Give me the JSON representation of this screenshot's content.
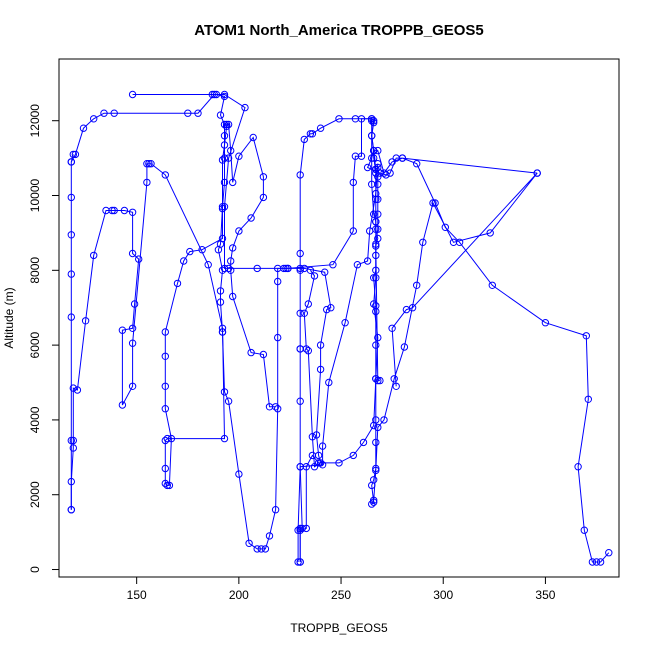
{
  "chart_data": {
    "type": "line",
    "title": "ATOM1 North_America TROPPB_GEOS5",
    "xlabel": "TROPPB_GEOS5",
    "ylabel": "Altitude (m)",
    "xlim": [
      112,
      386
    ],
    "ylim": [
      -200,
      13650
    ],
    "xticks": [
      150,
      200,
      250,
      300,
      350
    ],
    "yticks": [
      0,
      2000,
      4000,
      6000,
      8000,
      10000,
      12000
    ],
    "grid": false,
    "legend": "none",
    "color": "#0000ff",
    "marker": "open-circle",
    "series": [
      {
        "points": [
          [
            230,
            200
          ],
          [
            230,
            1100
          ],
          [
            231,
            1100
          ],
          [
            230,
            2750
          ],
          [
            230,
            4500
          ],
          [
            230,
            5900
          ],
          [
            230,
            5900
          ],
          [
            230,
            6850
          ],
          [
            230,
            8000
          ],
          [
            230,
            8450
          ],
          [
            230,
            10550
          ],
          [
            232,
            11500
          ],
          [
            235,
            11650
          ],
          [
            236,
            11650
          ],
          [
            240,
            11800
          ],
          [
            249,
            12050
          ],
          [
            257,
            12050
          ],
          [
            265,
            12050
          ],
          [
            266,
            12000
          ],
          [
            265,
            11600
          ],
          [
            266,
            11200
          ],
          [
            266,
            11000
          ],
          [
            267,
            10700
          ],
          [
            267,
            10600
          ],
          [
            268,
            10500
          ],
          [
            268,
            10300
          ],
          [
            268,
            9900
          ],
          [
            268,
            9500
          ],
          [
            268,
            9100
          ],
          [
            267,
            8700
          ],
          [
            267,
            8400
          ],
          [
            267,
            8000
          ],
          [
            266,
            7800
          ],
          [
            267,
            7050
          ],
          [
            267,
            6900
          ],
          [
            267,
            6000
          ],
          [
            267,
            5100
          ],
          [
            267,
            4000
          ],
          [
            267,
            3400
          ],
          [
            267,
            2700
          ],
          [
            266,
            2400
          ],
          [
            265,
            2250
          ],
          [
            266,
            1800
          ],
          [
            265,
            1750
          ],
          [
            266,
            1850
          ],
          [
            267,
            2650
          ],
          [
            268,
            3800
          ],
          [
            271,
            4000
          ],
          [
            276,
            5100
          ],
          [
            281,
            5950
          ],
          [
            287,
            7600
          ],
          [
            290,
            8750
          ],
          [
            295,
            9800
          ],
          [
            305,
            8750
          ],
          [
            323,
            9000
          ],
          [
            346,
            10600
          ],
          [
            285,
            7000
          ],
          [
            282,
            6950
          ],
          [
            275,
            6450
          ],
          [
            277,
            4900
          ]
        ]
      },
      {
        "points": [
          [
            118,
            1600
          ],
          [
            118,
            2350
          ],
          [
            119,
            3250
          ],
          [
            119,
            3450
          ],
          [
            119,
            4850
          ],
          [
            121,
            4800
          ],
          [
            125,
            6650
          ],
          [
            129,
            8400
          ],
          [
            135,
            9600
          ],
          [
            138,
            9600
          ],
          [
            139,
            9600
          ],
          [
            144,
            9600
          ],
          [
            148,
            9550
          ],
          [
            148,
            8450
          ],
          [
            151,
            8300
          ],
          [
            149,
            7100
          ],
          [
            148,
            6450
          ],
          [
            143,
            6400
          ],
          [
            143,
            4400
          ],
          [
            148,
            4900
          ],
          [
            148,
            6050
          ],
          [
            155,
            10350
          ],
          [
            155,
            10850
          ],
          [
            156,
            10850
          ],
          [
            157,
            10850
          ],
          [
            164,
            10550
          ],
          [
            185,
            8150
          ],
          [
            192,
            6450
          ],
          [
            193,
            3500
          ],
          [
            165,
            3500
          ],
          [
            164,
            3450
          ],
          [
            164,
            2700
          ],
          [
            164,
            2300
          ],
          [
            165,
            2250
          ],
          [
            166,
            2250
          ],
          [
            167,
            3500
          ],
          [
            164,
            4300
          ],
          [
            164,
            4900
          ],
          [
            164,
            5700
          ],
          [
            164,
            6350
          ],
          [
            170,
            7650
          ],
          [
            173,
            8250
          ],
          [
            176,
            8500
          ],
          [
            182,
            8550
          ],
          [
            192,
            8850
          ],
          [
            192,
            9650
          ],
          [
            192,
            10950
          ],
          [
            193,
            11350
          ],
          [
            194,
            11850
          ],
          [
            194,
            11900
          ],
          [
            195,
            11900
          ],
          [
            196,
            11200
          ],
          [
            197,
            10350
          ],
          [
            200,
            11050
          ],
          [
            207,
            11550
          ],
          [
            212,
            10500
          ],
          [
            212,
            9950
          ],
          [
            206,
            9400
          ],
          [
            200,
            9050
          ],
          [
            197,
            8600
          ],
          [
            196,
            8250
          ],
          [
            196,
            8000
          ],
          [
            197,
            7300
          ],
          [
            206,
            5800
          ],
          [
            212,
            5750
          ],
          [
            215,
            4350
          ],
          [
            218,
            4350
          ]
        ]
      },
      {
        "points": [
          [
            118,
            10900
          ],
          [
            120,
            11100
          ],
          [
            124,
            11800
          ],
          [
            129,
            12050
          ],
          [
            134,
            12200
          ],
          [
            139,
            12200
          ],
          [
            175,
            12200
          ],
          [
            180,
            12200
          ],
          [
            188,
            12700
          ],
          [
            189,
            12700
          ],
          [
            193,
            12650
          ],
          [
            191,
            12150
          ],
          [
            193,
            11900
          ],
          [
            193,
            11600
          ],
          [
            193,
            11000
          ],
          [
            193,
            10350
          ],
          [
            192,
            9700
          ],
          [
            191,
            8700
          ],
          [
            190,
            8550
          ],
          [
            192,
            8000
          ],
          [
            191,
            7450
          ],
          [
            191,
            7150
          ],
          [
            192,
            6350
          ],
          [
            192,
            6350
          ],
          [
            193,
            4750
          ],
          [
            195,
            4500
          ],
          [
            200,
            2550
          ],
          [
            205,
            700
          ],
          [
            209,
            550
          ],
          [
            211,
            550
          ],
          [
            213,
            550
          ],
          [
            215,
            900
          ],
          [
            218,
            1600
          ],
          [
            219,
            4300
          ],
          [
            219,
            6200
          ],
          [
            219,
            7700
          ],
          [
            219,
            8050
          ],
          [
            222,
            8050
          ],
          [
            223,
            8050
          ],
          [
            224,
            8050
          ],
          [
            230,
            8050
          ],
          [
            232,
            8050
          ],
          [
            242,
            7950
          ],
          [
            245,
            7000
          ],
          [
            243,
            6950
          ],
          [
            240,
            6000
          ],
          [
            240,
            5350
          ],
          [
            238,
            3600
          ],
          [
            239,
            3050
          ],
          [
            240,
            2850
          ],
          [
            237,
            2750
          ],
          [
            236,
            3550
          ],
          [
            234,
            5850
          ],
          [
            233,
            5900
          ],
          [
            232,
            6850
          ],
          [
            234,
            7100
          ],
          [
            237,
            7850
          ],
          [
            235,
            8000
          ]
        ]
      },
      {
        "points": [
          [
            148,
            12700
          ],
          [
            187,
            12700
          ],
          [
            193,
            12700
          ],
          [
            203,
            12350
          ],
          [
            195,
            11000
          ],
          [
            193,
            9700
          ],
          [
            193,
            8050
          ],
          [
            195,
            8050
          ],
          [
            209,
            8050
          ],
          [
            224,
            8050
          ],
          [
            246,
            8150
          ],
          [
            256,
            9050
          ],
          [
            256,
            10350
          ],
          [
            257,
            11050
          ],
          [
            260,
            11050
          ],
          [
            260,
            12050
          ],
          [
            265,
            12050
          ],
          [
            265,
            10300
          ],
          [
            266,
            9500
          ],
          [
            267,
            9300
          ],
          [
            267,
            9100
          ],
          [
            268,
            8850
          ],
          [
            267,
            8650
          ],
          [
            268,
            5050
          ],
          [
            269,
            5050
          ]
        ]
      },
      {
        "points": [
          [
            118,
            1600
          ],
          [
            118,
            3450
          ],
          [
            118,
            6750
          ],
          [
            118,
            7900
          ],
          [
            118,
            8950
          ],
          [
            118,
            9950
          ],
          [
            118,
            10900
          ],
          [
            119,
            11100
          ]
        ]
      },
      {
        "points": [
          [
            381,
            450
          ],
          [
            377,
            200
          ],
          [
            375,
            200
          ],
          [
            373,
            200
          ],
          [
            369,
            1050
          ],
          [
            366,
            2750
          ],
          [
            371,
            4550
          ],
          [
            370,
            6250
          ],
          [
            350,
            6600
          ],
          [
            324,
            7600
          ],
          [
            308,
            8750
          ],
          [
            301,
            9150
          ],
          [
            296,
            9800
          ],
          [
            287,
            10850
          ],
          [
            280,
            11000
          ],
          [
            275,
            10900
          ],
          [
            271,
            10600
          ],
          [
            268,
            11200
          ],
          [
            266,
            11200
          ],
          [
            265,
            11000
          ],
          [
            263,
            10750
          ],
          [
            269,
            10600
          ],
          [
            272,
            10550
          ],
          [
            274,
            10600
          ],
          [
            277,
            11000
          ],
          [
            280,
            11000
          ],
          [
            346,
            10600
          ]
        ]
      },
      {
        "points": [
          [
            230,
            200
          ],
          [
            230,
            1050
          ],
          [
            233,
            1100
          ],
          [
            233,
            2750
          ],
          [
            236,
            3050
          ],
          [
            239,
            2850
          ],
          [
            249,
            2850
          ],
          [
            256,
            3050
          ],
          [
            261,
            3400
          ],
          [
            266,
            3850
          ],
          [
            267,
            5100
          ],
          [
            268,
            6200
          ],
          [
            266,
            7100
          ],
          [
            267,
            7800
          ],
          [
            267,
            9300
          ],
          [
            267,
            9900
          ],
          [
            267,
            10700
          ],
          [
            268,
            10750
          ],
          [
            267,
            10700
          ],
          [
            266,
            11200
          ],
          [
            265,
            11600
          ],
          [
            266,
            11950
          ],
          [
            265,
            12000
          ]
        ]
      },
      {
        "points": [
          [
            229,
            200
          ],
          [
            229,
            1050
          ],
          [
            230,
            2750
          ],
          [
            241,
            2800
          ],
          [
            241,
            3300
          ],
          [
            244,
            5000
          ],
          [
            252,
            6600
          ],
          [
            258,
            8150
          ],
          [
            263,
            8250
          ],
          [
            264,
            9050
          ],
          [
            267,
            10050
          ],
          [
            268,
            10850
          ]
        ]
      }
    ]
  }
}
